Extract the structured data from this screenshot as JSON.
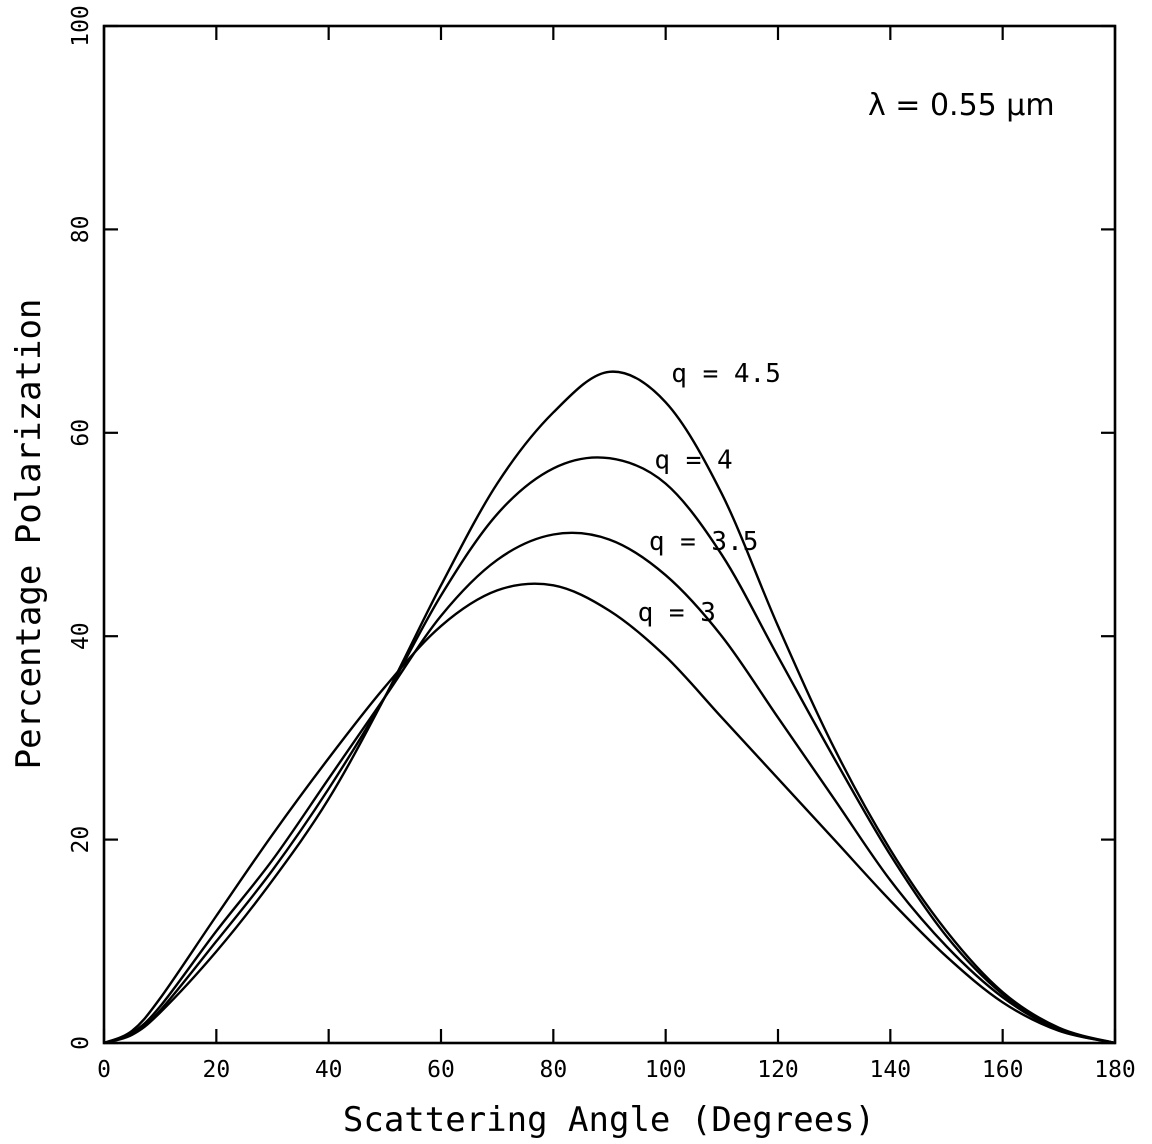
{
  "chart_data": {
    "type": "line",
    "xlabel": "Scattering Angle (Degrees)",
    "ylabel": "Percentage Polarization",
    "xlim": [
      0,
      180
    ],
    "ylim": [
      0,
      100
    ],
    "xticks": [
      0,
      20,
      40,
      60,
      80,
      100,
      120,
      140,
      160,
      180
    ],
    "yticks": [
      0,
      20,
      40,
      60,
      80,
      100
    ],
    "grid": false,
    "legend": "none",
    "annotation": "λ = 0.55 μm",
    "series": [
      {
        "name": "q = 4.5",
        "x": [
          0,
          5,
          10,
          20,
          30,
          40,
          50,
          60,
          70,
          80,
          90,
          100,
          110,
          120,
          130,
          140,
          150,
          160,
          170,
          180
        ],
        "y": [
          0,
          0.8,
          3.0,
          9,
          16,
          24,
          34,
          45,
          55,
          62,
          66,
          63,
          54,
          41,
          29,
          19,
          11,
          5,
          1.5,
          0
        ]
      },
      {
        "name": "q = 4",
        "x": [
          0,
          5,
          10,
          20,
          30,
          40,
          50,
          60,
          70,
          80,
          90,
          100,
          110,
          120,
          130,
          140,
          150,
          160,
          170,
          180
        ],
        "y": [
          0,
          0.9,
          3.2,
          10,
          17,
          25,
          34,
          44,
          52,
          56.5,
          57.5,
          55,
          48,
          38,
          28,
          18.5,
          10.5,
          4.8,
          1.4,
          0
        ]
      },
      {
        "name": "q = 3.5",
        "x": [
          0,
          5,
          10,
          20,
          30,
          40,
          50,
          60,
          70,
          80,
          90,
          100,
          110,
          120,
          130,
          140,
          150,
          160,
          170,
          180
        ],
        "y": [
          0,
          1.0,
          3.6,
          11,
          18,
          26,
          34,
          42,
          47.5,
          50,
          49.5,
          46,
          40,
          32,
          24,
          16,
          9.5,
          4.5,
          1.3,
          0
        ]
      },
      {
        "name": "q = 3",
        "x": [
          0,
          5,
          10,
          20,
          30,
          40,
          50,
          60,
          70,
          80,
          90,
          100,
          110,
          120,
          130,
          140,
          150,
          160,
          170,
          180
        ],
        "y": [
          0,
          1.2,
          4.4,
          12.5,
          20.5,
          28,
          35,
          41,
          44.5,
          45,
          42.5,
          38,
          32,
          26,
          20,
          14,
          8.5,
          4,
          1.2,
          0
        ]
      }
    ],
    "curve_labels": [
      "q = 4.5",
      "q = 4",
      "q = 3.5",
      "q = 3"
    ]
  }
}
